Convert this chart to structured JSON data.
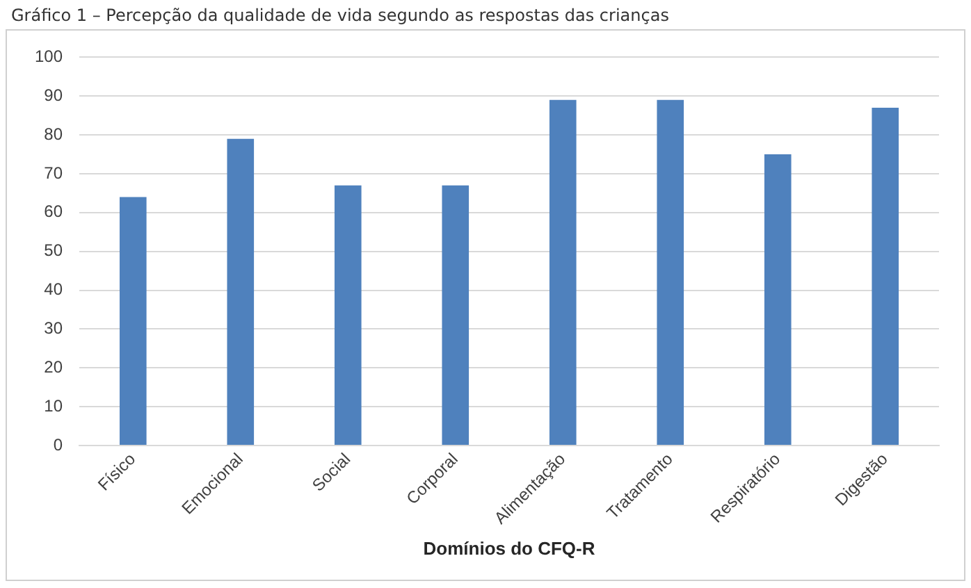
{
  "chart_data": {
    "type": "bar",
    "title": "Gráfico 1 – Percepção da qualidade de vida segundo as respostas das crianças",
    "xlabel": "Domínios do CFQ-R",
    "categories": [
      "Físico",
      "Emocional",
      "Social",
      "Corporal",
      "Alimentação",
      "Tratamento",
      "Respiratório",
      "Digestão"
    ],
    "values": [
      64,
      79,
      67,
      67,
      89,
      89,
      75,
      87
    ],
    "color": "#4f81bd",
    "ylim": [
      0,
      100
    ],
    "yticks": [
      0,
      10,
      20,
      30,
      40,
      50,
      60,
      70,
      80,
      90,
      100
    ],
    "grid": "y",
    "legend": false
  }
}
